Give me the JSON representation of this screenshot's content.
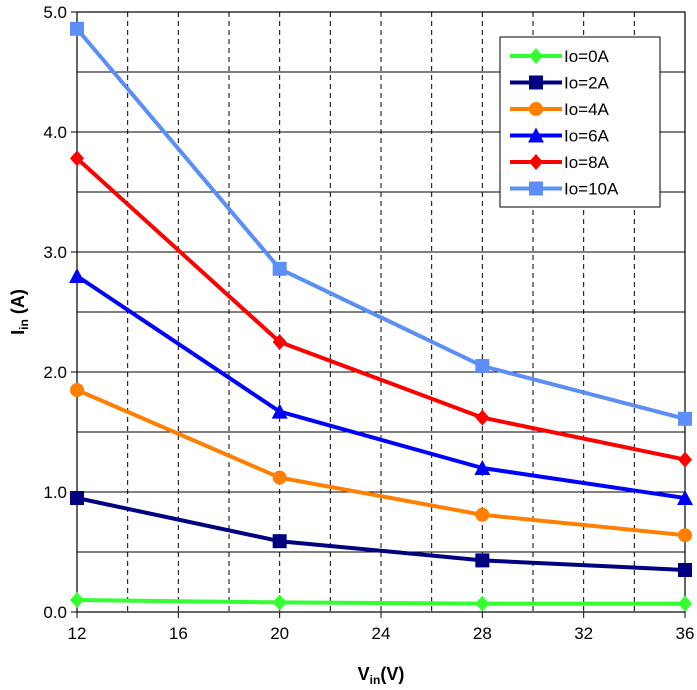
{
  "chart_data": {
    "type": "line",
    "title": "",
    "xlabel_main": "V",
    "xlabel_sub": "in",
    "xlabel_tail": "(V)",
    "ylabel_main": "I",
    "ylabel_sub": "in",
    "ylabel_tail": " (A)",
    "xlim": [
      12,
      36
    ],
    "ylim": [
      0,
      5
    ],
    "x_ticks": [
      12,
      16,
      20,
      24,
      28,
      32,
      36
    ],
    "x_tick_labels": [
      "12",
      "16",
      "20",
      "24",
      "28",
      "32",
      "36"
    ],
    "y_ticks": [
      0,
      1,
      2,
      3,
      4,
      5
    ],
    "y_tick_labels": [
      "0.0",
      "1.0",
      "2.0",
      "3.0",
      "4.0",
      "5.0"
    ],
    "grid": true,
    "legend_position": "top-right",
    "x": [
      12,
      20,
      28,
      36
    ],
    "series": [
      {
        "name": "Io=0A",
        "values": [
          0.1,
          0.08,
          0.07,
          0.07
        ],
        "color": "#33ff33",
        "marker": "diamond"
      },
      {
        "name": "Io=2A",
        "values": [
          0.95,
          0.59,
          0.43,
          0.35
        ],
        "color": "#000080",
        "marker": "square"
      },
      {
        "name": "Io=4A",
        "values": [
          1.85,
          1.12,
          0.81,
          0.64
        ],
        "color": "#ff8000",
        "marker": "circle"
      },
      {
        "name": "Io=6A",
        "values": [
          2.8,
          1.67,
          1.2,
          0.95
        ],
        "color": "#0000ff",
        "marker": "triangle"
      },
      {
        "name": "Io=8A",
        "values": [
          3.78,
          2.25,
          1.62,
          1.27
        ],
        "color": "#ff0000",
        "marker": "diamond"
      },
      {
        "name": "Io=10A",
        "values": [
          4.86,
          2.86,
          2.05,
          1.61
        ],
        "color": "#5b8ff7",
        "marker": "square"
      }
    ]
  }
}
